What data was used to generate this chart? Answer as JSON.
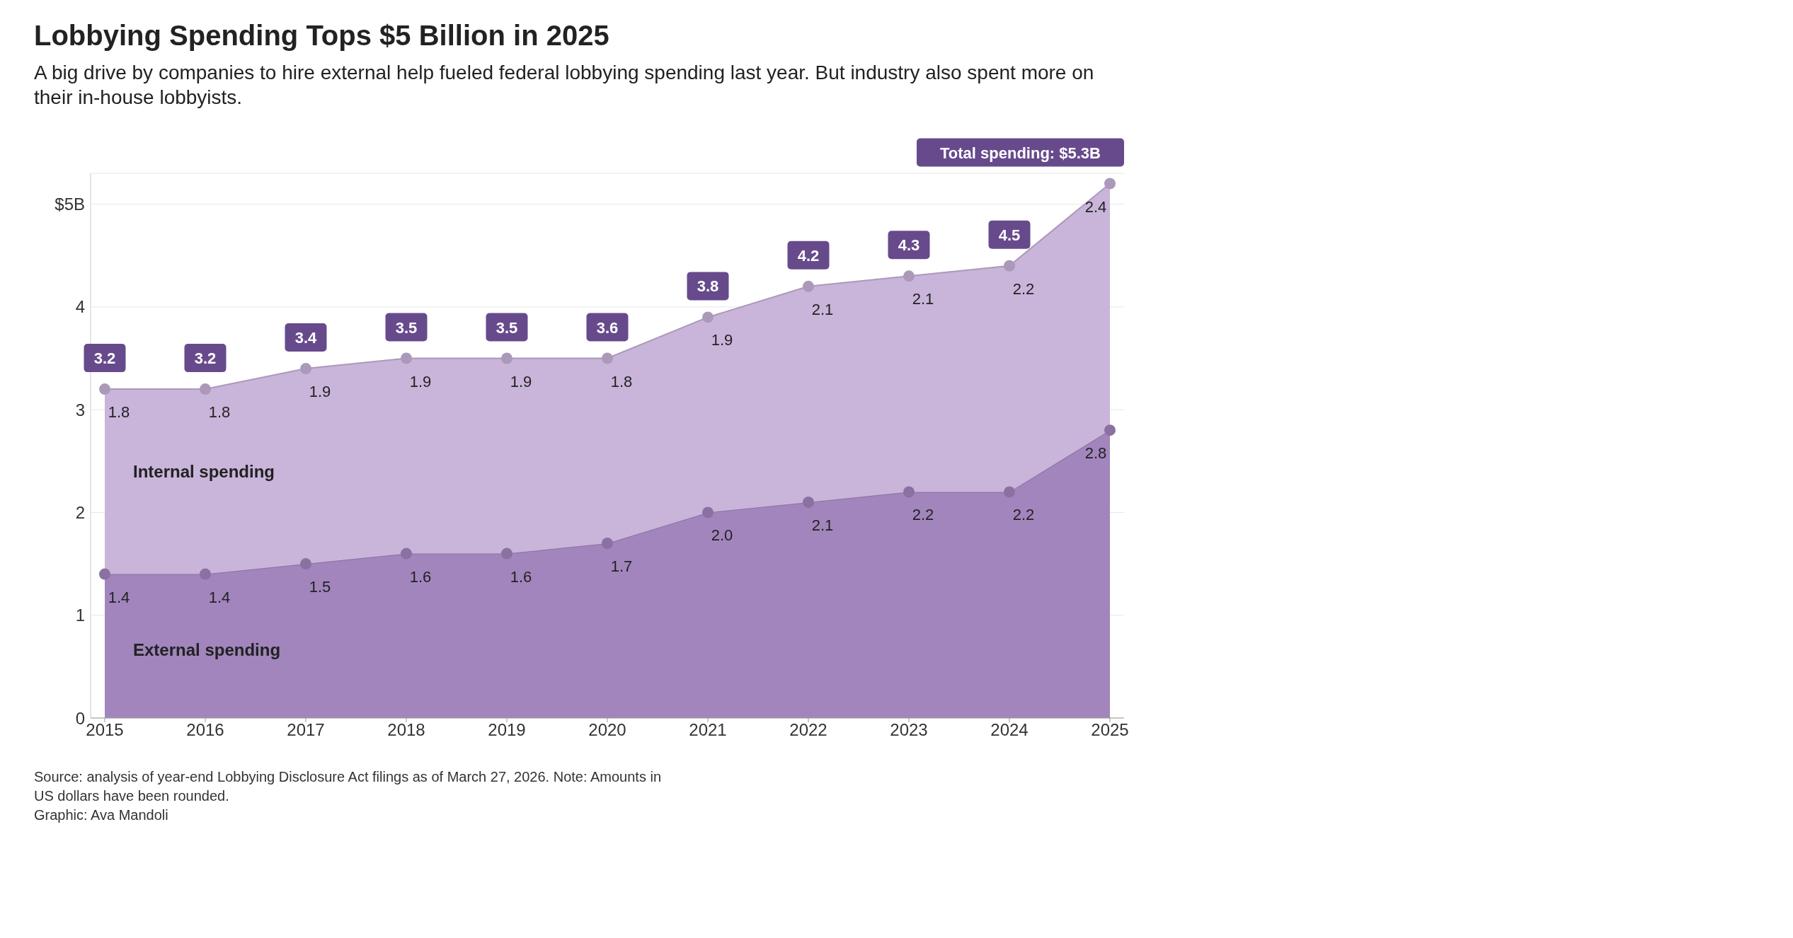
{
  "chart_data": {
    "type": "area",
    "stacked": true,
    "title": "Lobbying Spending Tops $5 Billion in 2025",
    "subtitle": "A big drive by companies to hire external help fueled federal lobbying spending last year. But industry also spent more on their in-house lobbyists.",
    "categories": [
      "2015",
      "2016",
      "2017",
      "2018",
      "2019",
      "2020",
      "2021",
      "2022",
      "2023",
      "2024",
      "2025"
    ],
    "series": [
      {
        "name": "External spending",
        "color": "#a285bd",
        "values": [
          1.4,
          1.4,
          1.5,
          1.6,
          1.6,
          1.7,
          2.0,
          2.1,
          2.2,
          2.2,
          2.8
        ],
        "value_labels": [
          "1.4",
          "1.4",
          "1.5",
          "1.6",
          "1.6",
          "1.7",
          "2.0",
          "2.1",
          "2.2",
          "2.2",
          "2.8"
        ]
      },
      {
        "name": "Internal spending",
        "color": "#c9b4da",
        "values": [
          1.8,
          1.8,
          1.9,
          1.9,
          1.9,
          1.8,
          1.9,
          2.1,
          2.1,
          2.2,
          2.4
        ],
        "value_labels": [
          "1.8",
          "1.8",
          "1.9",
          "1.9",
          "1.9",
          "1.8",
          "1.9",
          "2.1",
          "2.1",
          "2.2",
          "2.4"
        ]
      }
    ],
    "totals": [
      "3.2",
      "3.2",
      "3.4",
      "3.5",
      "3.5",
      "3.6",
      "3.8",
      "4.2",
      "4.3",
      "4.5",
      "Total spending: $5.3B"
    ],
    "ylim": [
      0,
      5.3
    ],
    "yticks": [
      0,
      1,
      2,
      3,
      4,
      {
        "value": 5,
        "label": "$5B"
      }
    ],
    "grid": "y",
    "marker": "circle",
    "legend": false,
    "annotations": [
      "Source: analysis of year-end Lobbying Disclosure Act filings as of March 27, 2026. Note: Amounts in US dollars have been rounded.",
      "Graphic: Ava Mandoli"
    ]
  }
}
